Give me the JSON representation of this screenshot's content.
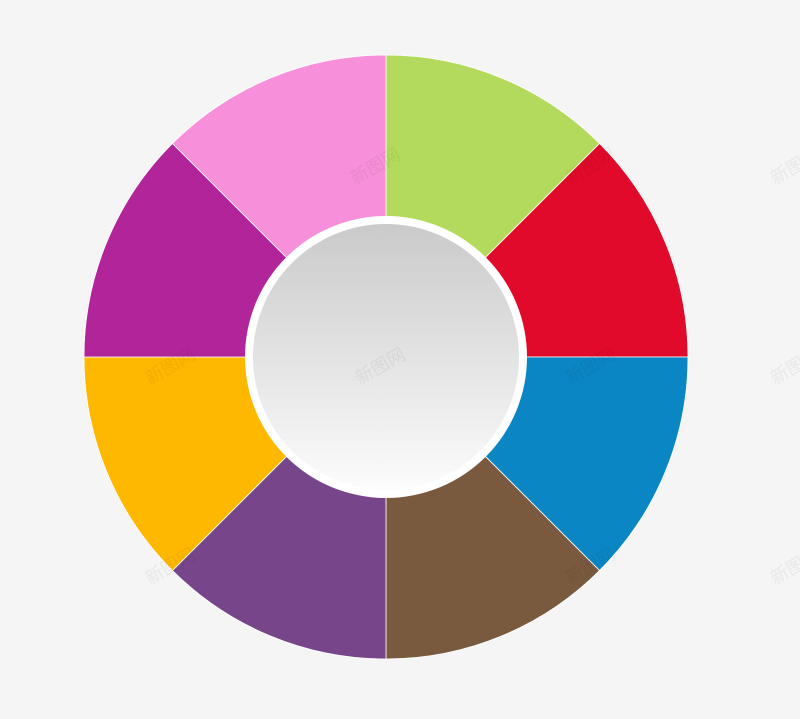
{
  "wheel": {
    "segments": [
      {
        "color": "#b3da5c"
      },
      {
        "color": "#e10a2a"
      },
      {
        "color": "#0b86c4"
      },
      {
        "color": "#7a5a3f"
      },
      {
        "color": "#774589"
      },
      {
        "color": "#ffb800"
      },
      {
        "color": "#b2249a"
      },
      {
        "color": "#f78fda"
      }
    ],
    "center": {
      "gradient_top": "#cacaca",
      "gradient_bottom": "#fcfcfc",
      "ring": "#ffffff"
    }
  },
  "watermark": "新图网"
}
